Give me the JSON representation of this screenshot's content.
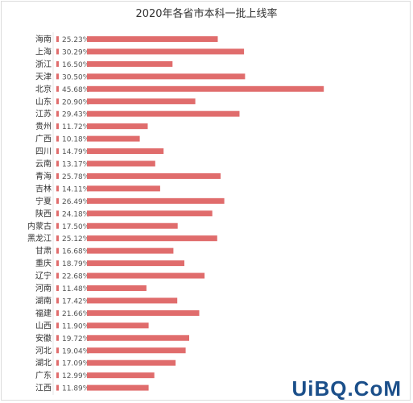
{
  "chart_data": {
    "type": "bar",
    "orientation": "horizontal",
    "title": "2020年各省市本科一批上线率",
    "categories": [
      "海南",
      "上海",
      "浙江",
      "天津",
      "北京",
      "山东",
      "江苏",
      "贵州",
      "广西",
      "四川",
      "云南",
      "青海",
      "吉林",
      "宁夏",
      "陕西",
      "内蒙古",
      "黑龙江",
      "甘肃",
      "重庆",
      "辽宁",
      "河南",
      "湖南",
      "福建",
      "山西",
      "安徽",
      "河北",
      "湖北",
      "广东",
      "江西"
    ],
    "values": [
      25.23,
      30.29,
      16.5,
      30.5,
      45.68,
      20.9,
      29.43,
      11.72,
      10.18,
      14.79,
      13.17,
      25.78,
      14.11,
      26.49,
      24.18,
      17.5,
      25.12,
      16.68,
      18.79,
      22.68,
      11.48,
      17.42,
      21.66,
      11.9,
      19.72,
      19.04,
      17.09,
      12.99,
      11.89
    ],
    "value_labels": [
      "25.23%",
      "30.29%",
      "16.50%",
      "30.50%",
      "45.68%",
      "20.90%",
      "29.43%",
      "11.72%",
      "10.18%",
      "14.79%",
      "13.17%",
      "25.78%",
      "14.11%",
      "26.49%",
      "24.18%",
      "17.50%",
      "25.12%",
      "16.68%",
      "18.79%",
      "22.68%",
      "11.48%",
      "17.42%",
      "21.66%",
      "11.90%",
      "19.72%",
      "19.04%",
      "17.09%",
      "12.99%",
      "11.89%"
    ],
    "xlim": [
      0,
      50
    ],
    "grid": false,
    "bar_color": "#e06c6c"
  },
  "watermark": "UiBQ.CoM"
}
